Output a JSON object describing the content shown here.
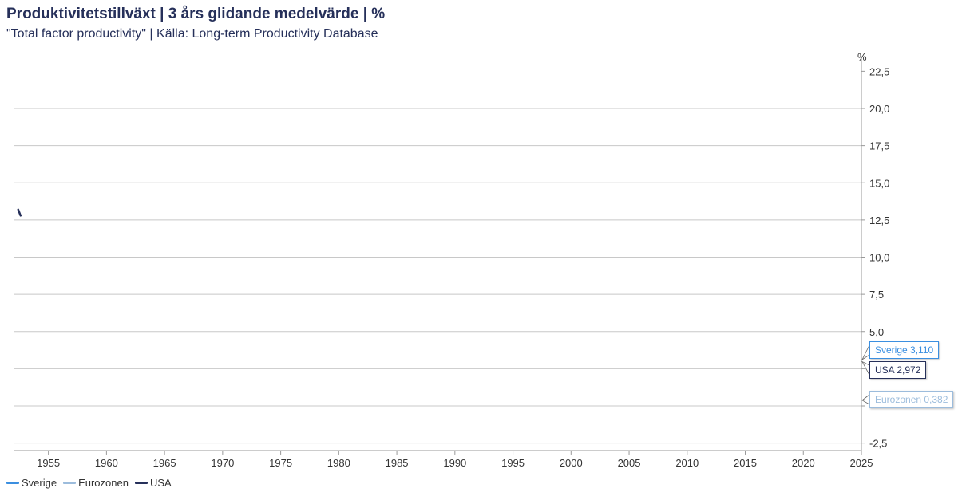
{
  "title": "Produktivitetstillväxt | 3 års glidande medelvärde | %",
  "subtitle": "\"Total factor productivity\" | Källa: Long-term Productivity Database",
  "colors": {
    "sverige": "#3b8fe0",
    "eurozonen": "#9cbcdc",
    "usa": "#26305a",
    "grid": "#c8c8c8",
    "axis": "#999999"
  },
  "chart_data": {
    "type": "line",
    "y_unit_label": "%",
    "x_range": [
      1952,
      2025
    ],
    "y_range": [
      -3.0,
      23.5
    ],
    "x_ticks": [
      "1955",
      "1960",
      "1965",
      "1970",
      "1975",
      "1980",
      "1985",
      "1990",
      "1995",
      "2000",
      "2005",
      "2010",
      "2015",
      "2020",
      "2025"
    ],
    "y_ticks": [
      "22,5",
      "20,0",
      "17,5",
      "15,0",
      "12,5",
      "10,0",
      "7,5",
      "5,0",
      "",
      "",
      "-2,5"
    ],
    "y_tick_values": [
      22.5,
      20.0,
      17.5,
      15.0,
      12.5,
      10.0,
      7.5,
      5.0,
      2.5,
      0.0,
      -2.5
    ],
    "grid": true,
    "legend_position": "bottom-left",
    "series": [
      {
        "name": "Sverige",
        "x": [],
        "y": []
      },
      {
        "name": "Eurozonen",
        "x": [],
        "y": []
      },
      {
        "name": "USA",
        "x": [
          1952.4,
          1952.6
        ],
        "y": [
          13.2,
          12.8
        ]
      }
    ],
    "end_labels": [
      {
        "label": "Sverige 3,110",
        "value": 3.11
      },
      {
        "label": "USA 2,972",
        "value": 2.972
      },
      {
        "label": "Eurozonen 0,382",
        "value": 0.382
      }
    ]
  },
  "legend": {
    "items": [
      "Sverige",
      "Eurozonen",
      "USA"
    ]
  }
}
